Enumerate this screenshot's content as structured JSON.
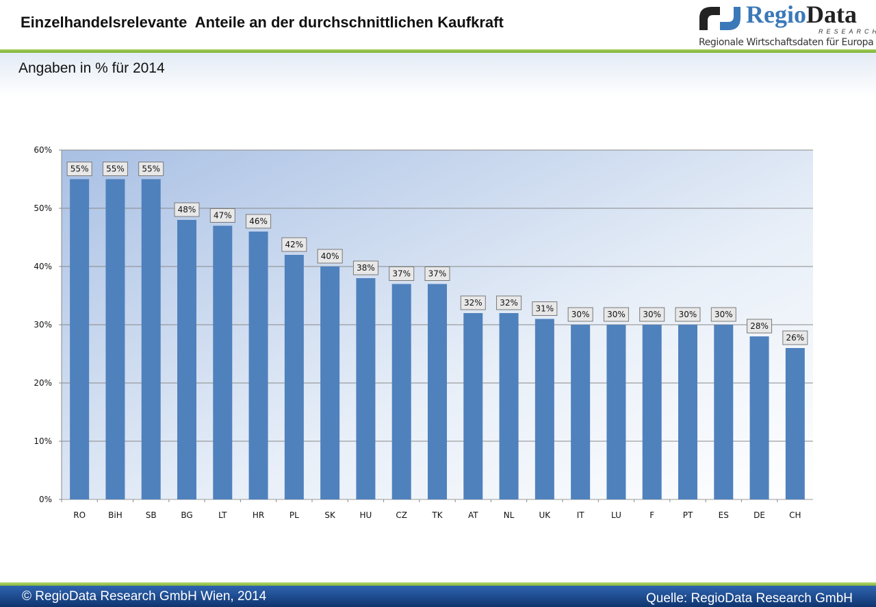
{
  "header": {
    "title": "Einzelhandelsrelevante  Anteile an der durchschnittlichen Kaufkraft",
    "subtitle": "Angaben in % für 2014"
  },
  "logo": {
    "word_a": "Regio",
    "word_b": "Data",
    "research": "RESEARCH",
    "tagline": "Regionale Wirtschaftsdaten für Europa"
  },
  "footer": {
    "left": "© RegioData Research GmbH Wien, 2014",
    "right": "Quelle: RegioData Research GmbH"
  },
  "chart_data": {
    "type": "bar",
    "categories": [
      "RO",
      "BiH",
      "SB",
      "BG",
      "LT",
      "HR",
      "PL",
      "SK",
      "HU",
      "CZ",
      "TK",
      "AT",
      "NL",
      "UK",
      "IT",
      "LU",
      "F",
      "PT",
      "ES",
      "DE",
      "CH"
    ],
    "values": [
      55,
      55,
      55,
      48,
      47,
      46,
      42,
      40,
      38,
      37,
      37,
      32,
      32,
      31,
      30,
      30,
      30,
      30,
      30,
      28,
      26
    ],
    "data_labels": [
      "55%",
      "55%",
      "55%",
      "48%",
      "47%",
      "46%",
      "42%",
      "40%",
      "38%",
      "37%",
      "37%",
      "32%",
      "32%",
      "31%",
      "30%",
      "30%",
      "30%",
      "30%",
      "30%",
      "28%",
      "26%"
    ],
    "yticks": [
      "0%",
      "10%",
      "20%",
      "30%",
      "40%",
      "50%",
      "60%"
    ],
    "ylim": [
      0,
      60
    ],
    "grid": true,
    "bar_color": "#4f81bd"
  }
}
